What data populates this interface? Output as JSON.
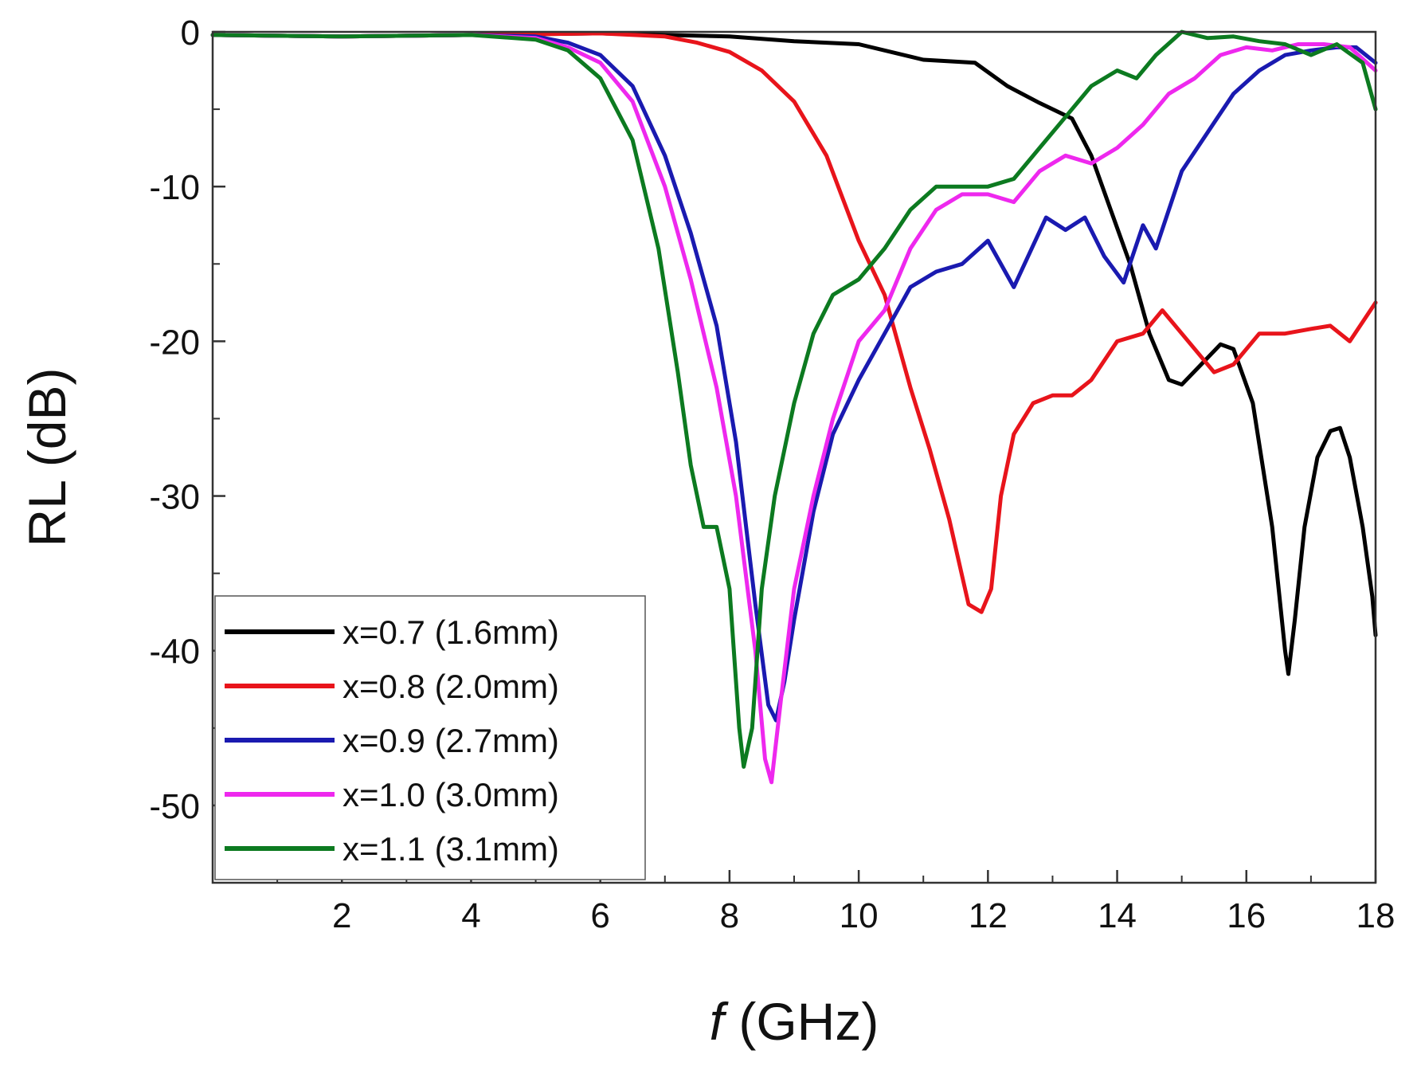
{
  "chart_data": {
    "type": "line",
    "title": "",
    "xlabel_italic": "f",
    "xlabel_rest": " (GHz)",
    "ylabel": "RL (dB)",
    "xlim": [
      0,
      18
    ],
    "ylim": [
      -55,
      0
    ],
    "x_ticks": [
      2,
      4,
      6,
      8,
      10,
      12,
      14,
      16,
      18
    ],
    "y_ticks": [
      0,
      -10,
      -20,
      -30,
      -40,
      -50
    ],
    "x_tick_labels": [
      "2",
      "4",
      "6",
      "8",
      "10",
      "12",
      "14",
      "16",
      "18"
    ],
    "y_tick_labels": [
      "0",
      "-10",
      "-20",
      "-30",
      "-40",
      "-50"
    ],
    "grid": false,
    "legend_position": "bottom-left",
    "series": [
      {
        "name": "x=0.7 (1.6mm)",
        "color": "#000000",
        "x": [
          0,
          2,
          4,
          6,
          8,
          9,
          10,
          11,
          11.8,
          12.3,
          12.8,
          13.3,
          13.6,
          13.9,
          14.2,
          14.5,
          14.8,
          15,
          15.3,
          15.6,
          15.8,
          16.1,
          16.4,
          16.6,
          16.65,
          16.75,
          16.9,
          17.1,
          17.3,
          17.45,
          17.6,
          17.8,
          17.95,
          18
        ],
        "y": [
          -0.2,
          -0.3,
          -0.2,
          -0.1,
          -0.3,
          -0.6,
          -0.8,
          -1.8,
          -2.0,
          -3.5,
          -4.6,
          -5.6,
          -8.0,
          -11.5,
          -15.0,
          -19.5,
          -22.5,
          -22.8,
          -21.5,
          -20.2,
          -20.5,
          -24.0,
          -32.0,
          -40.0,
          -41.5,
          -38.0,
          -32.0,
          -27.5,
          -25.8,
          -25.6,
          -27.5,
          -32.0,
          -36.5,
          -39.0
        ]
      },
      {
        "name": "x=0.8 (2.0mm)",
        "color": "#e8141b",
        "x": [
          0,
          2,
          4,
          6,
          7,
          7.5,
          8,
          8.5,
          9,
          9.5,
          10,
          10.4,
          10.8,
          11.1,
          11.4,
          11.7,
          11.9,
          12.05,
          12.2,
          12.4,
          12.7,
          13.0,
          13.3,
          13.6,
          14.0,
          14.4,
          14.7,
          15.0,
          15.5,
          15.8,
          16.2,
          16.6,
          17.0,
          17.3,
          17.6,
          18
        ],
        "y": [
          -0.2,
          -0.3,
          -0.2,
          -0.1,
          -0.3,
          -0.7,
          -1.3,
          -2.5,
          -4.5,
          -8.0,
          -13.5,
          -17.0,
          -23.0,
          -27.0,
          -31.5,
          -37.0,
          -37.5,
          -36.0,
          -30.0,
          -26.0,
          -24.0,
          -23.5,
          -23.5,
          -22.5,
          -20.0,
          -19.5,
          -18.0,
          -19.5,
          -22.0,
          -21.5,
          -19.5,
          -19.5,
          -19.2,
          -19.0,
          -20.0,
          -17.5
        ]
      },
      {
        "name": "x=0.9 (2.7mm)",
        "color": "#1a1ab0",
        "x": [
          0,
          2,
          4,
          5,
          5.5,
          6,
          6.5,
          7,
          7.4,
          7.8,
          8.1,
          8.4,
          8.6,
          8.72,
          8.85,
          9.0,
          9.3,
          9.6,
          10.0,
          10.4,
          10.8,
          11.2,
          11.6,
          12.0,
          12.4,
          12.9,
          13.2,
          13.5,
          13.8,
          14.1,
          14.4,
          14.6,
          15.0,
          15.4,
          15.8,
          16.2,
          16.6,
          17.0,
          17.4,
          17.7,
          18
        ],
        "y": [
          -0.2,
          -0.3,
          -0.2,
          -0.3,
          -0.7,
          -1.5,
          -3.5,
          -8.0,
          -13.0,
          -19.0,
          -26.5,
          -37.0,
          -43.5,
          -44.5,
          -42.0,
          -38.0,
          -31.0,
          -26.0,
          -22.5,
          -19.5,
          -16.5,
          -15.5,
          -15.0,
          -13.5,
          -16.5,
          -12.0,
          -12.8,
          -12.0,
          -14.5,
          -16.2,
          -12.5,
          -14.0,
          -9.0,
          -6.5,
          -4.0,
          -2.5,
          -1.5,
          -1.2,
          -1.0,
          -1.0,
          -2.0
        ]
      },
      {
        "name": "x=1.0 (3.0mm)",
        "color": "#ee28ee",
        "x": [
          0,
          2,
          4,
          5,
          5.5,
          6,
          6.5,
          7,
          7.4,
          7.8,
          8.1,
          8.4,
          8.55,
          8.65,
          8.8,
          9.0,
          9.3,
          9.6,
          10.0,
          10.4,
          10.8,
          11.2,
          11.6,
          12.0,
          12.4,
          12.8,
          13.2,
          13.6,
          14.0,
          14.4,
          14.8,
          15.2,
          15.6,
          16.0,
          16.4,
          16.8,
          17.2,
          17.6,
          18
        ],
        "y": [
          -0.2,
          -0.3,
          -0.2,
          -0.4,
          -1.0,
          -2.0,
          -4.5,
          -10.0,
          -16.0,
          -23.0,
          -30.0,
          -40.0,
          -47.0,
          -48.5,
          -43.0,
          -36.0,
          -30.0,
          -25.0,
          -20.0,
          -18.0,
          -14.0,
          -11.5,
          -10.5,
          -10.5,
          -11.0,
          -9.0,
          -8.0,
          -8.5,
          -7.5,
          -6.0,
          -4.0,
          -3.0,
          -1.5,
          -1.0,
          -1.2,
          -0.8,
          -0.8,
          -1.0,
          -2.5
        ]
      },
      {
        "name": "x=1.1 (3.1mm)",
        "color": "#0c7a20",
        "x": [
          0,
          2,
          4,
          5,
          5.5,
          6,
          6.5,
          6.9,
          7.2,
          7.4,
          7.6,
          7.8,
          8.0,
          8.15,
          8.22,
          8.35,
          8.5,
          8.7,
          9.0,
          9.3,
          9.6,
          10.0,
          10.4,
          10.8,
          11.2,
          11.6,
          12.0,
          12.4,
          12.8,
          13.2,
          13.6,
          14.0,
          14.3,
          14.6,
          15.0,
          15.4,
          15.8,
          16.2,
          16.6,
          17.0,
          17.4,
          17.8,
          18
        ],
        "y": [
          -0.2,
          -0.3,
          -0.2,
          -0.5,
          -1.2,
          -3.0,
          -7.0,
          -14.0,
          -22.0,
          -28.0,
          -32.0,
          -32.0,
          -36.0,
          -45.0,
          -47.5,
          -45.0,
          -36.0,
          -30.0,
          -24.0,
          -19.5,
          -17.0,
          -16.0,
          -14.0,
          -11.5,
          -10.0,
          -10.0,
          -10.0,
          -9.5,
          -7.5,
          -5.5,
          -3.5,
          -2.5,
          -3.0,
          -1.5,
          0.0,
          -0.4,
          -0.3,
          -0.6,
          -0.8,
          -1.5,
          -0.8,
          -2.0,
          -5.0
        ]
      }
    ]
  }
}
